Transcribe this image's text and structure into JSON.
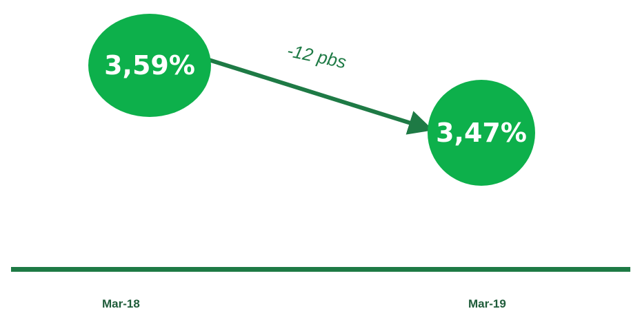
{
  "colors": {
    "bubble": "#0db04b",
    "bubble_text": "#ffffff",
    "arrow": "#1e7a45",
    "change_label": "#1e7a45",
    "baseline": "#1e7a45"
  },
  "chart_data": {
    "type": "line",
    "categories": [
      "Mar-18",
      "Mar-19"
    ],
    "series": [
      {
        "values": [
          3.59,
          3.47
        ]
      }
    ],
    "value_labels": [
      "3,59%",
      "3,47%"
    ],
    "change_label": "-12 pbs",
    "title": "",
    "xlabel": "",
    "ylabel": ""
  }
}
